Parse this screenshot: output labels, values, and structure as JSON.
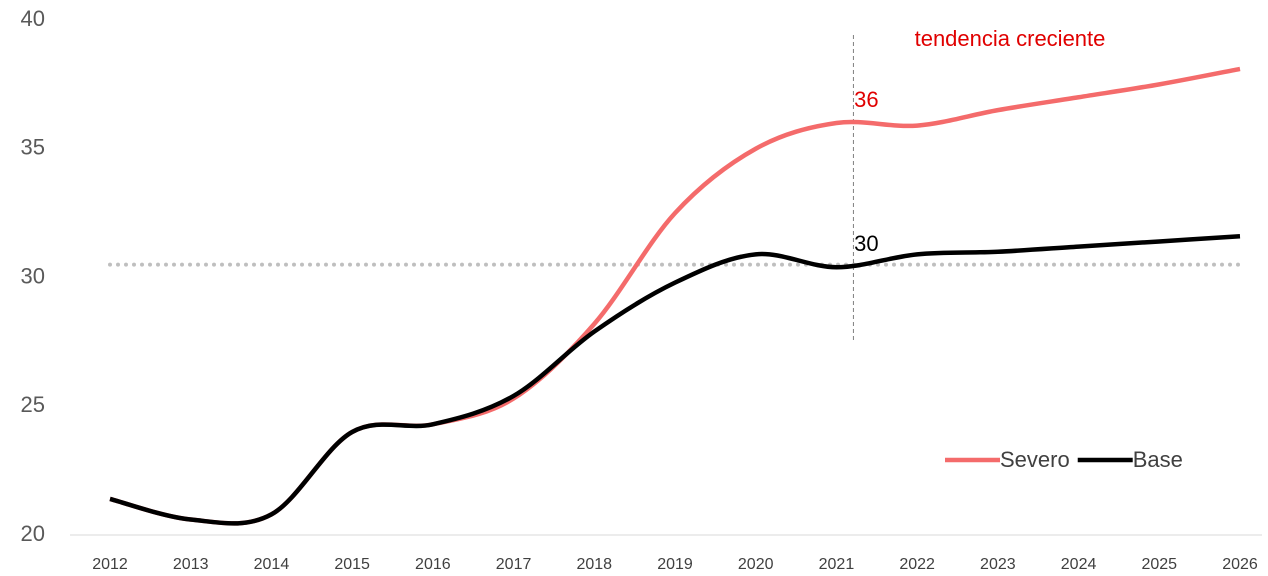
{
  "chart_data": {
    "type": "line",
    "categories": [
      "2012",
      "2013",
      "2014",
      "2015",
      "2016",
      "2017",
      "2018",
      "2019",
      "2020",
      "2021",
      "2022",
      "2023",
      "2024",
      "2025",
      "2026"
    ],
    "series": [
      {
        "name": "Severo",
        "color": "#f46b6b",
        "values": [
          21.4,
          20.6,
          20.8,
          24.0,
          24.3,
          25.3,
          28.2,
          32.5,
          35.0,
          36,
          35.9,
          36.5,
          37.0,
          37.5,
          38.1
        ],
        "value_labels": [
          null,
          null,
          null,
          null,
          null,
          null,
          null,
          null,
          null,
          "36",
          null,
          null,
          null,
          null,
          null
        ]
      },
      {
        "name": "Base",
        "color": "#000000",
        "values": [
          21.4,
          20.6,
          20.8,
          24.0,
          24.3,
          25.4,
          27.9,
          29.8,
          30.9,
          30.4,
          30.9,
          31.0,
          31.2,
          31.4,
          31.6
        ],
        "value_labels": [
          null,
          null,
          null,
          null,
          null,
          null,
          null,
          null,
          null,
          "30",
          null,
          null,
          null,
          null,
          null
        ]
      }
    ],
    "ylim": [
      20,
      40
    ],
    "yticks": [
      20,
      25,
      30,
      35,
      40
    ],
    "reference_line": 30.5,
    "annotation": "tendencia creciente",
    "legend": "lower right"
  }
}
